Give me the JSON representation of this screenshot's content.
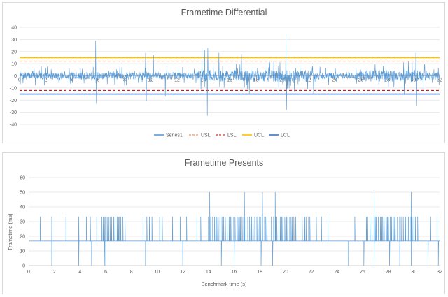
{
  "chart_data": [
    {
      "type": "line",
      "title": "Frametime Differential",
      "xlabel": "",
      "ylabel": "",
      "xlim": [
        0,
        32
      ],
      "ylim": [
        -40,
        40
      ],
      "x_ticks": [
        0,
        2,
        4,
        6,
        8,
        10,
        12,
        14,
        16,
        18,
        20,
        22,
        24,
        26,
        28,
        30,
        32
      ],
      "y_ticks": [
        -40,
        -30,
        -20,
        -10,
        0,
        10,
        20,
        30,
        40
      ],
      "grid": true,
      "legend_position": "bottom",
      "series": [
        {
          "name": "Series1",
          "color": "#5b9bd5",
          "style": "noisy frame-to-frame difference centered at 0",
          "spikes": [
            [
              5.8,
              29
            ],
            [
              5.85,
              -23
            ],
            [
              9.6,
              19
            ],
            [
              9.65,
              -21
            ],
            [
              10.2,
              17
            ],
            [
              11.1,
              -17
            ],
            [
              13.9,
              23
            ],
            [
              14.1,
              21
            ],
            [
              14.3,
              -33
            ],
            [
              14.35,
              23
            ],
            [
              15.2,
              19
            ],
            [
              16.9,
              18
            ],
            [
              17.5,
              -15
            ],
            [
              20.3,
              34
            ],
            [
              20.35,
              -28
            ],
            [
              22.4,
              -15
            ],
            [
              29.3,
              -15
            ],
            [
              30.2,
              19
            ],
            [
              30.25,
              -25
            ]
          ]
        },
        {
          "name": "USL",
          "color": "#ed7d31",
          "dashed": true,
          "value": 12
        },
        {
          "name": "LSL",
          "color": "#c00000",
          "dashed": true,
          "value": -12
        },
        {
          "name": "UCL",
          "color": "#ffc000",
          "dashed": false,
          "value": 15
        },
        {
          "name": "LCL",
          "color": "#4472c4",
          "dashed": false,
          "value": -15
        }
      ]
    },
    {
      "type": "line",
      "title": "Frametime Presents",
      "xlabel": "Benchmark time (s)",
      "ylabel": "Frametime (ms)",
      "xlim": [
        0,
        32
      ],
      "ylim": [
        0,
        60
      ],
      "x_ticks": [
        0,
        2,
        4,
        6,
        8,
        10,
        12,
        14,
        16,
        18,
        20,
        22,
        24,
        26,
        28,
        30,
        32
      ],
      "y_ticks": [
        0,
        10,
        20,
        30,
        40,
        50,
        60
      ],
      "grid": true,
      "series": [
        {
          "name": "Series1",
          "color": "#5b9bd5",
          "baseline": 16.7,
          "high_value": 33.4,
          "low_value": 0,
          "spikes_50": [
            14.1,
            16.8,
            18.2,
            19.2,
            26.9,
            29.8
          ],
          "spikes_33_sparse": [
            0.9,
            1.8,
            2.9,
            3.9,
            4.5,
            4.8,
            5.3,
            8.9,
            9.2,
            9.4,
            9.6,
            10.2,
            10.4,
            11.2,
            11.8,
            12.3,
            13.1,
            13.4,
            21.3,
            21.5,
            21.6,
            21.8,
            21.9,
            22.4,
            22.8,
            23.3,
            25.4,
            31.3,
            31.8
          ],
          "dense_33_ranges": [
            [
              5.7,
              7.6
            ],
            [
              14.0,
              18.6
            ],
            [
              18.9,
              20.9
            ],
            [
              26.3,
              30.4
            ]
          ],
          "drops_low": [
            1.8,
            3.9,
            4.9,
            5.9,
            6.0,
            9.1,
            12.0,
            15.0,
            16.0,
            18.1,
            19.0,
            24.9,
            26.1,
            26.9,
            28.1,
            28.9,
            29.8,
            31.1,
            31.9
          ]
        }
      ]
    }
  ]
}
